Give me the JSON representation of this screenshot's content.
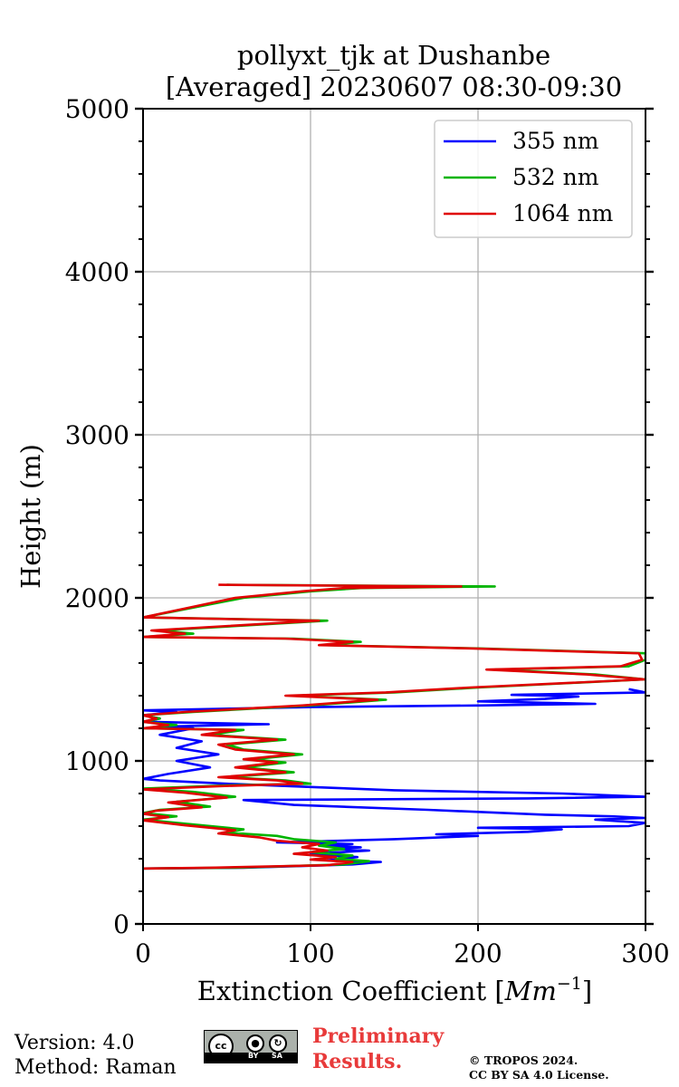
{
  "chart_data": {
    "type": "line",
    "title": [
      "pollyxt_tjk at Dushanbe",
      "[Averaged] 20230607 08:30-09:30"
    ],
    "xlabel": "Extinction Coefficient [",
    "xlabel_unit": "Mm",
    "xlabel_exponent": "−1",
    "xlabel_close": "]",
    "ylabel": "Height (m)",
    "xlim": [
      0,
      300
    ],
    "ylim": [
      0,
      5000
    ],
    "xticks": [
      0,
      100,
      200,
      300
    ],
    "xtick_labels": [
      "0",
      "100",
      "200",
      "300"
    ],
    "yticks": [
      0,
      1000,
      2000,
      3000,
      4000,
      5000
    ],
    "ytick_labels": [
      "0",
      "1000",
      "2000",
      "3000",
      "4000",
      "5000"
    ],
    "grid": true,
    "legend_position": "top-right",
    "series": [
      {
        "name": "355 nm",
        "color": "#0000ff",
        "points": [
          [
            0,
            340
          ],
          [
            60,
            345
          ],
          [
            125,
            365
          ],
          [
            142,
            380
          ],
          [
            110,
            390
          ],
          [
            128,
            410
          ],
          [
            100,
            430
          ],
          [
            135,
            450
          ],
          [
            115,
            460
          ],
          [
            130,
            470
          ],
          [
            110,
            480
          ],
          [
            125,
            490
          ],
          [
            80,
            500
          ],
          [
            150,
            520
          ],
          [
            200,
            540
          ],
          [
            175,
            550
          ],
          [
            230,
            565
          ],
          [
            250,
            580
          ],
          [
            200,
            590
          ],
          [
            290,
            600
          ],
          [
            300,
            620
          ],
          [
            270,
            640
          ],
          [
            300,
            650
          ],
          [
            280,
            660
          ],
          [
            240,
            670
          ],
          [
            170,
            700
          ],
          [
            90,
            730
          ],
          [
            60,
            760
          ],
          [
            230,
            770
          ],
          [
            300,
            780
          ],
          [
            250,
            800
          ],
          [
            150,
            820
          ],
          [
            100,
            840
          ],
          [
            50,
            860
          ],
          [
            10,
            880
          ],
          [
            0,
            890
          ],
          [
            15,
            920
          ],
          [
            40,
            960
          ],
          [
            20,
            1000
          ],
          [
            45,
            1040
          ],
          [
            20,
            1080
          ],
          [
            35,
            1120
          ],
          [
            10,
            1160
          ],
          [
            30,
            1200
          ],
          [
            10,
            1210
          ],
          [
            75,
            1225
          ],
          [
            0,
            1240
          ],
          [
            10,
            1260
          ],
          [
            0,
            1280
          ],
          [
            20,
            1300
          ],
          [
            0,
            1310
          ],
          [
            100,
            1330
          ],
          [
            200,
            1340
          ],
          [
            270,
            1350
          ],
          [
            200,
            1365
          ],
          [
            240,
            1380
          ],
          [
            260,
            1395
          ],
          [
            220,
            1405
          ],
          [
            300,
            1420
          ],
          [
            290,
            1440
          ]
        ]
      },
      {
        "name": "532 nm",
        "color": "#00b400",
        "points": [
          [
            0,
            340
          ],
          [
            55,
            345
          ],
          [
            120,
            365
          ],
          [
            135,
            385
          ],
          [
            115,
            400
          ],
          [
            125,
            420
          ],
          [
            100,
            440
          ],
          [
            120,
            460
          ],
          [
            105,
            480
          ],
          [
            115,
            500
          ],
          [
            90,
            520
          ],
          [
            80,
            540
          ],
          [
            50,
            560
          ],
          [
            60,
            580
          ],
          [
            30,
            610
          ],
          [
            0,
            640
          ],
          [
            20,
            660
          ],
          [
            0,
            680
          ],
          [
            10,
            700
          ],
          [
            40,
            720
          ],
          [
            20,
            750
          ],
          [
            55,
            780
          ],
          [
            30,
            810
          ],
          [
            0,
            830
          ],
          [
            50,
            850
          ],
          [
            100,
            860
          ],
          [
            85,
            880
          ],
          [
            50,
            900
          ],
          [
            90,
            930
          ],
          [
            60,
            960
          ],
          [
            85,
            990
          ],
          [
            65,
            1010
          ],
          [
            95,
            1040
          ],
          [
            60,
            1070
          ],
          [
            50,
            1100
          ],
          [
            85,
            1130
          ],
          [
            40,
            1160
          ],
          [
            60,
            1190
          ],
          [
            0,
            1200
          ],
          [
            20,
            1220
          ],
          [
            0,
            1240
          ],
          [
            10,
            1260
          ],
          [
            0,
            1280
          ],
          [
            30,
            1300
          ],
          [
            100,
            1340
          ],
          [
            145,
            1375
          ],
          [
            90,
            1400
          ],
          [
            150,
            1420
          ],
          [
            200,
            1450
          ],
          [
            300,
            1500
          ],
          [
            270,
            1530
          ],
          [
            210,
            1560
          ],
          [
            290,
            1580
          ],
          [
            300,
            1620
          ],
          [
            300,
            1660
          ],
          [
            200,
            1690
          ],
          [
            110,
            1710
          ],
          [
            130,
            1730
          ],
          [
            90,
            1750
          ],
          [
            0,
            1760
          ],
          [
            30,
            1780
          ],
          [
            10,
            1800
          ],
          [
            110,
            1860
          ],
          [
            0,
            1880
          ],
          [
            60,
            2000
          ],
          [
            100,
            2040
          ],
          [
            130,
            2060
          ],
          [
            210,
            2070
          ],
          [
            50,
            2080
          ]
        ]
      },
      {
        "name": "1064 nm",
        "color": "#e00000",
        "points": [
          [
            0,
            340
          ],
          [
            40,
            345
          ],
          [
            110,
            360
          ],
          [
            125,
            380
          ],
          [
            100,
            395
          ],
          [
            115,
            410
          ],
          [
            90,
            430
          ],
          [
            110,
            450
          ],
          [
            95,
            470
          ],
          [
            105,
            490
          ],
          [
            80,
            510
          ],
          [
            70,
            530
          ],
          [
            45,
            555
          ],
          [
            55,
            575
          ],
          [
            25,
            605
          ],
          [
            0,
            635
          ],
          [
            15,
            655
          ],
          [
            0,
            675
          ],
          [
            8,
            695
          ],
          [
            35,
            715
          ],
          [
            15,
            745
          ],
          [
            50,
            775
          ],
          [
            25,
            805
          ],
          [
            0,
            825
          ],
          [
            45,
            845
          ],
          [
            95,
            860
          ],
          [
            80,
            880
          ],
          [
            45,
            900
          ],
          [
            85,
            930
          ],
          [
            55,
            960
          ],
          [
            80,
            990
          ],
          [
            60,
            1010
          ],
          [
            90,
            1040
          ],
          [
            55,
            1070
          ],
          [
            45,
            1100
          ],
          [
            80,
            1130
          ],
          [
            35,
            1160
          ],
          [
            55,
            1190
          ],
          [
            0,
            1200
          ],
          [
            15,
            1220
          ],
          [
            0,
            1240
          ],
          [
            8,
            1260
          ],
          [
            0,
            1280
          ],
          [
            25,
            1300
          ],
          [
            95,
            1340
          ],
          [
            140,
            1375
          ],
          [
            85,
            1400
          ],
          [
            145,
            1420
          ],
          [
            195,
            1450
          ],
          [
            300,
            1500
          ],
          [
            265,
            1530
          ],
          [
            205,
            1560
          ],
          [
            285,
            1580
          ],
          [
            298,
            1620
          ],
          [
            296,
            1660
          ],
          [
            195,
            1690
          ],
          [
            105,
            1710
          ],
          [
            125,
            1730
          ],
          [
            85,
            1750
          ],
          [
            0,
            1760
          ],
          [
            25,
            1780
          ],
          [
            5,
            1800
          ],
          [
            105,
            1860
          ],
          [
            0,
            1880
          ],
          [
            55,
            2000
          ],
          [
            95,
            2040
          ],
          [
            120,
            2060
          ],
          [
            190,
            2070
          ],
          [
            45,
            2080
          ]
        ]
      }
    ]
  },
  "footer": {
    "version": "Version: 4.0",
    "method": "Method: Raman",
    "license_badge": {
      "cc": "cc",
      "by": "BY",
      "sa": "SA"
    },
    "preliminary": [
      "Preliminary",
      "Results."
    ],
    "copyright": [
      "© TROPOS 2024.",
      "CC BY SA 4.0 License."
    ]
  }
}
